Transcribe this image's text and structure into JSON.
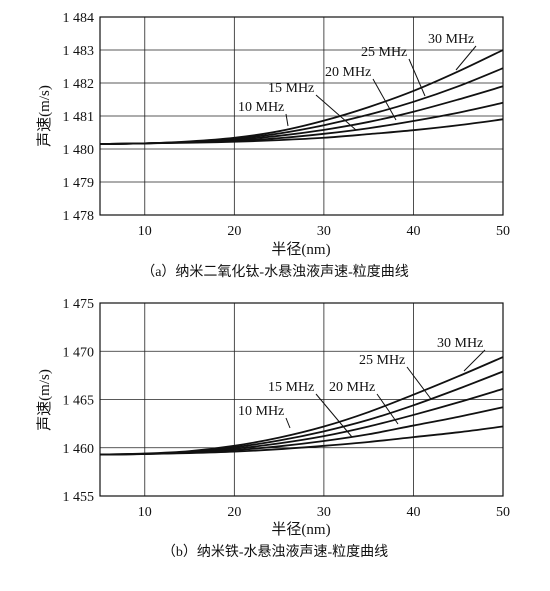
{
  "chart_data": [
    {
      "type": "line",
      "xlabel": "半径(nm)",
      "ylabel": "声速(m/s)",
      "caption": "（a）纳米二氧化钛-水悬浊液声速-粒度曲线",
      "xlim": [
        5,
        50
      ],
      "ylim": [
        1478,
        1484
      ],
      "grid": true,
      "x_ticks": [
        10,
        20,
        30,
        40,
        50
      ],
      "y_ticks": [
        1478,
        1479,
        1480,
        1481,
        1482,
        1483,
        1484
      ],
      "x_tick_labels": [
        "10",
        "20",
        "30",
        "40",
        "50"
      ],
      "y_tick_labels": [
        "1 478",
        "1 479",
        "1 480",
        "1 481",
        "1 482",
        "1 483",
        "1 484"
      ],
      "x": [
        5,
        10,
        15,
        20,
        25,
        30,
        35,
        40,
        45,
        50
      ],
      "series": [
        {
          "name": "10 MHz",
          "values": [
            1480.15,
            1480.17,
            1480.19,
            1480.22,
            1480.27,
            1480.34,
            1480.45,
            1480.57,
            1480.72,
            1480.9
          ]
        },
        {
          "name": "15 MHz",
          "values": [
            1480.15,
            1480.17,
            1480.2,
            1480.25,
            1480.33,
            1480.46,
            1480.63,
            1480.85,
            1481.1,
            1481.4
          ]
        },
        {
          "name": "20 MHz",
          "values": [
            1480.15,
            1480.17,
            1480.21,
            1480.28,
            1480.4,
            1480.58,
            1480.82,
            1481.13,
            1481.5,
            1481.9
          ]
        },
        {
          "name": "25 MHz",
          "values": [
            1480.15,
            1480.17,
            1480.22,
            1480.31,
            1480.47,
            1480.72,
            1481.04,
            1481.43,
            1481.9,
            1482.45
          ]
        },
        {
          "name": "30 MHz",
          "values": [
            1480.15,
            1480.17,
            1480.23,
            1480.34,
            1480.54,
            1480.86,
            1481.27,
            1481.76,
            1482.35,
            1483.0
          ]
        }
      ]
    },
    {
      "type": "line",
      "xlabel": "半径(nm)",
      "ylabel": "声速(m/s)",
      "caption": "（b）纳米铁-水悬浊液声速-粒度曲线",
      "xlim": [
        5,
        50
      ],
      "ylim": [
        1455,
        1475
      ],
      "grid": true,
      "x_ticks": [
        10,
        20,
        30,
        40,
        50
      ],
      "y_ticks": [
        1455,
        1460,
        1465,
        1470,
        1475
      ],
      "x_tick_labels": [
        "10",
        "20",
        "30",
        "40",
        "50"
      ],
      "y_tick_labels": [
        "1 455",
        "1 460",
        "1 465",
        "1 470",
        "1 475"
      ],
      "x": [
        5,
        10,
        15,
        20,
        25,
        30,
        35,
        40,
        45,
        50
      ],
      "series": [
        {
          "name": "10 MHz",
          "values": [
            1459.3,
            1459.35,
            1459.45,
            1459.6,
            1459.85,
            1460.2,
            1460.6,
            1461.1,
            1461.6,
            1462.2
          ]
        },
        {
          "name": "15 MHz",
          "values": [
            1459.3,
            1459.35,
            1459.5,
            1459.75,
            1460.15,
            1460.7,
            1461.4,
            1462.3,
            1463.2,
            1464.2
          ]
        },
        {
          "name": "20 MHz",
          "values": [
            1459.3,
            1459.35,
            1459.55,
            1459.9,
            1460.45,
            1461.2,
            1462.2,
            1463.4,
            1464.7,
            1466.1
          ]
        },
        {
          "name": "25 MHz",
          "values": [
            1459.3,
            1459.37,
            1459.6,
            1460.05,
            1460.75,
            1461.7,
            1462.9,
            1464.4,
            1466.1,
            1467.9
          ]
        },
        {
          "name": "30 MHz",
          "values": [
            1459.3,
            1459.4,
            1459.65,
            1460.2,
            1461.05,
            1462.2,
            1463.7,
            1465.5,
            1467.4,
            1469.4
          ]
        }
      ]
    }
  ]
}
